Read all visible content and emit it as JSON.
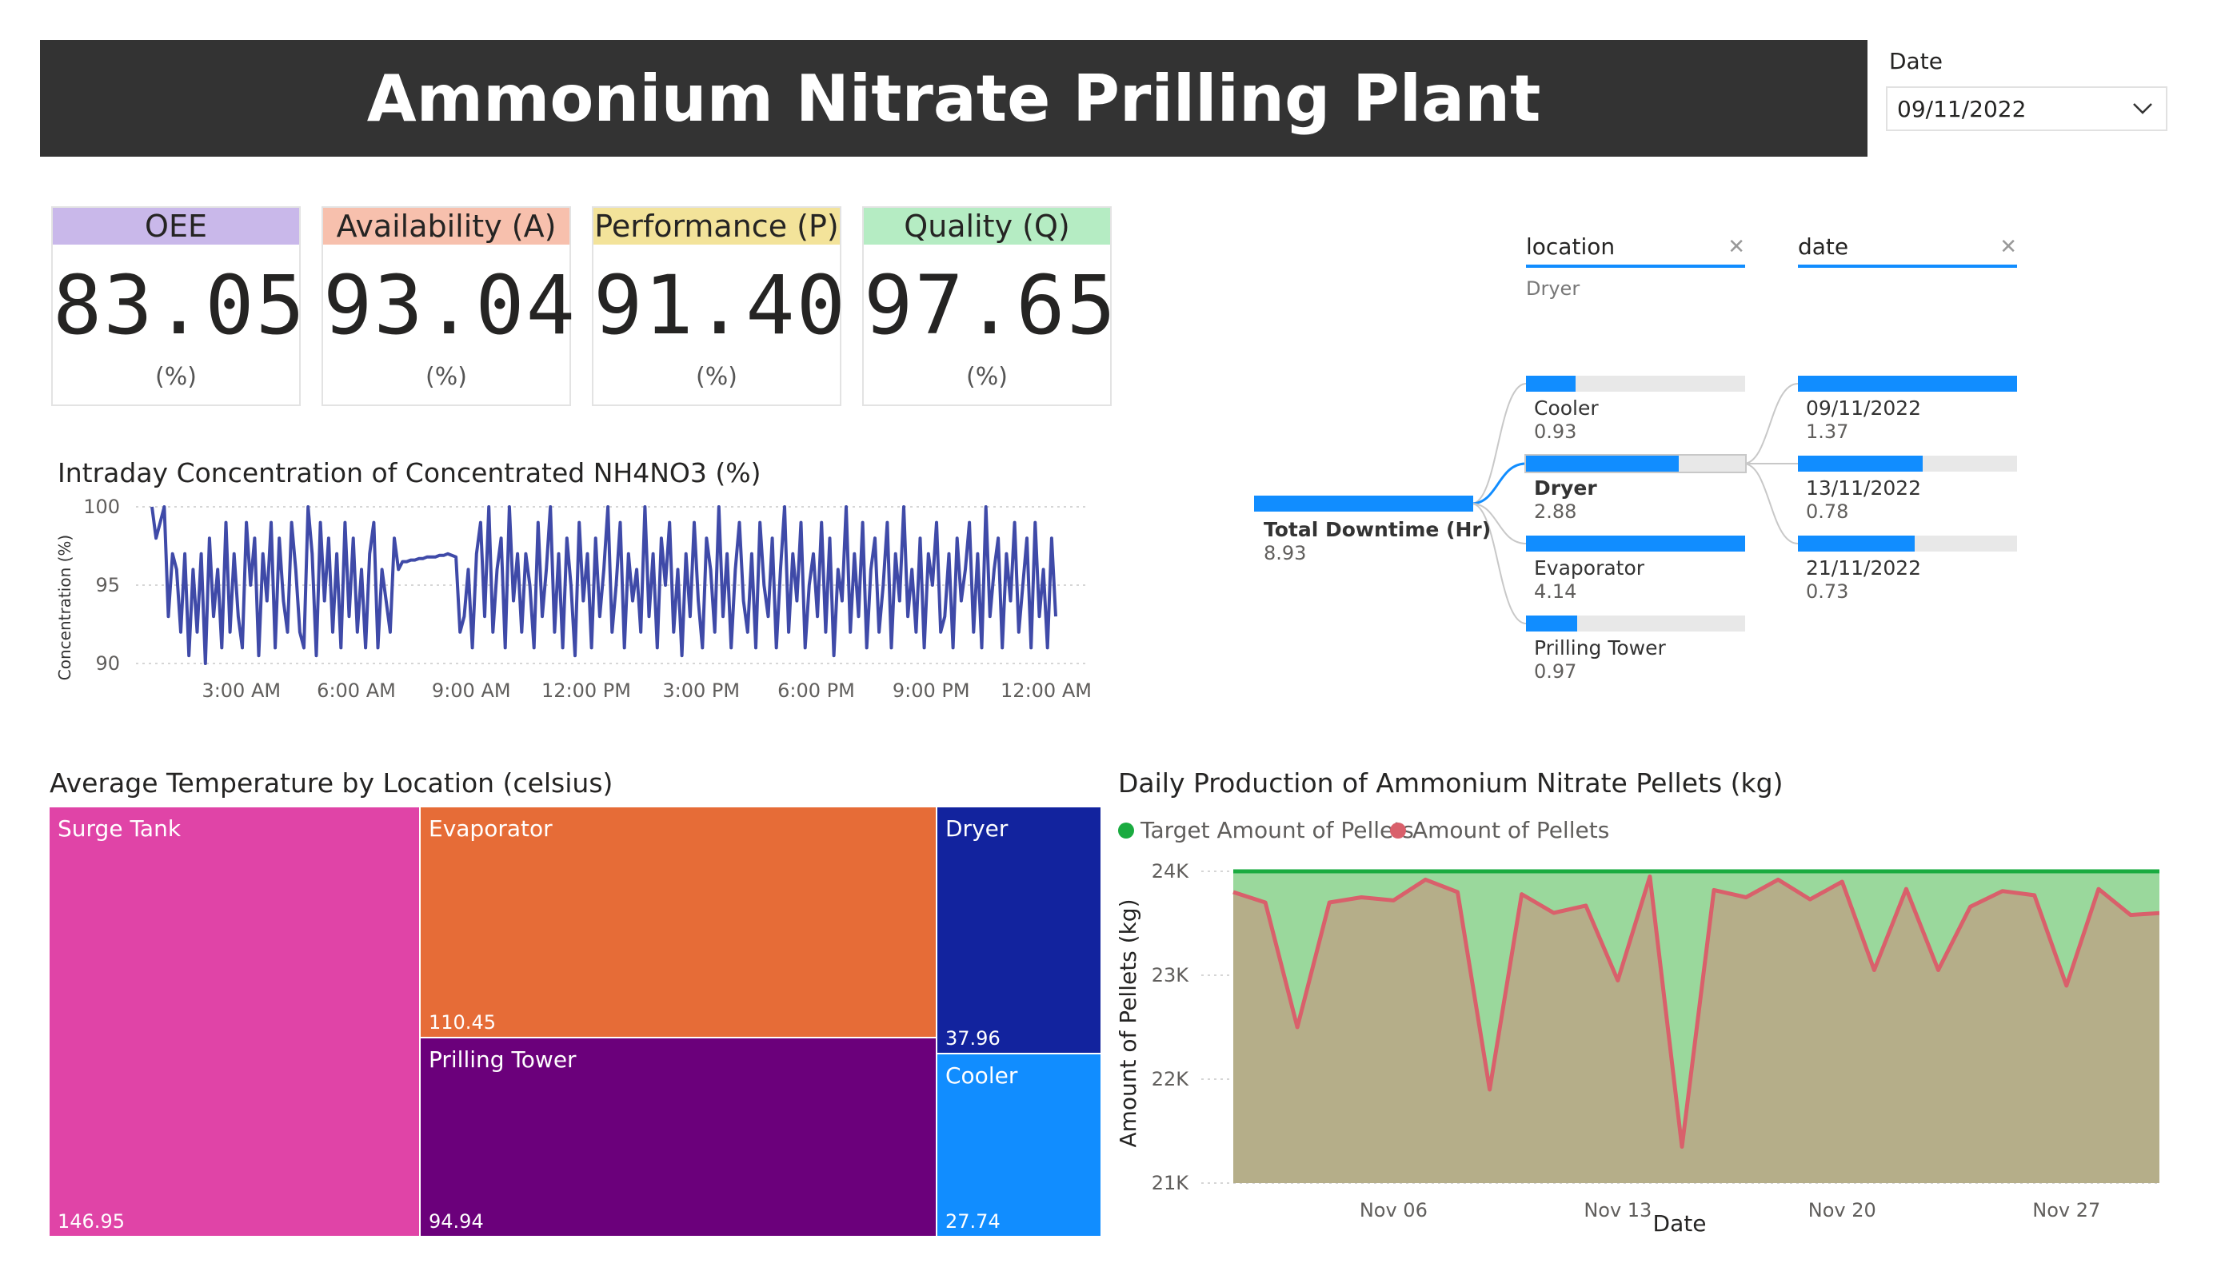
{
  "header": {
    "title": "Ammonium Nitrate Prilling Plant"
  },
  "date_slicer": {
    "label": "Date",
    "value": "09/11/2022",
    "chevron_icon": "chevron-down-icon"
  },
  "kpis": [
    {
      "name": "OEE",
      "value": "83.05",
      "unit": "(%)",
      "color": "#c9b8ea"
    },
    {
      "name": "Availability (A)",
      "value": "93.04",
      "unit": "(%)",
      "color": "#f7c0ad"
    },
    {
      "name": "Performance (P)",
      "value": "91.40",
      "unit": "(%)",
      "color": "#f3e39a"
    },
    {
      "name": "Quality (Q)",
      "value": "97.65",
      "unit": "(%)",
      "color": "#b5ecc3"
    }
  ],
  "decomposition": {
    "filters": [
      {
        "label": "location",
        "selected": "Dryer"
      },
      {
        "label": "date",
        "selected": ""
      }
    ],
    "root": {
      "label": "Total Downtime (Hr)",
      "value": "8.93"
    },
    "locations": [
      {
        "label": "Cooler",
        "value": "0.93",
        "fraction": 0.225
      },
      {
        "label": "Dryer",
        "value": "2.88",
        "fraction": 0.696,
        "selected": true
      },
      {
        "label": "Evaporator",
        "value": "4.14",
        "fraction": 1.0
      },
      {
        "label": "Prilling Tower",
        "value": "0.97",
        "fraction": 0.234
      }
    ],
    "dates": [
      {
        "label": "09/11/2022",
        "value": "1.37",
        "fraction": 1.0
      },
      {
        "label": "13/11/2022",
        "value": "0.78",
        "fraction": 0.569
      },
      {
        "label": "21/11/2022",
        "value": "0.73",
        "fraction": 0.533
      }
    ]
  },
  "intraday_chart": {
    "title": "Intraday Concentration of Concentrated NH4NO3 (%)",
    "ylabel": "Concentration (%)",
    "yticks": [
      "100",
      "95",
      "90"
    ],
    "xticks": [
      "3:00 AM",
      "6:00 AM",
      "9:00 AM",
      "12:00 PM",
      "3:00 PM",
      "6:00 PM",
      "9:00 PM",
      "12:00 AM"
    ],
    "line_color": "#3f4aa8"
  },
  "treemap": {
    "title": "Average Temperature by Location (celsius)",
    "items": [
      {
        "name": "Surge Tank",
        "value": "146.95",
        "color": "#e044a7"
      },
      {
        "name": "Evaporator",
        "value": "110.45",
        "color": "#e66c37"
      },
      {
        "name": "Prilling Tower",
        "value": "94.94",
        "color": "#6b007b"
      },
      {
        "name": "Dryer",
        "value": "37.96",
        "color": "#12239e"
      },
      {
        "name": "Cooler",
        "value": "27.74",
        "color": "#118dff"
      }
    ]
  },
  "production_chart": {
    "title": "Daily Production of Ammonium Nitrate Pellets (kg)",
    "legend": [
      {
        "name": "Target Amount of Pellets",
        "color": "#1aab40"
      },
      {
        "name": "Amount of Pellets",
        "color": "#d9606b"
      }
    ],
    "ylabel": "Amount of Pellets (kg)",
    "xlabel": "Date",
    "yticks": [
      "24K",
      "23K",
      "22K",
      "21K"
    ],
    "xticks": [
      "Nov 06",
      "Nov 13",
      "Nov 20",
      "Nov 27"
    ]
  },
  "chart_data": [
    {
      "type": "line",
      "title": "Intraday Concentration of Concentrated NH4NO3 (%)",
      "ylabel": "Concentration (%)",
      "ylim": [
        90,
        100
      ],
      "x_range": [
        "12:00 AM",
        "12:00 AM"
      ],
      "series": [
        {
          "values": [
            100,
            98,
            99,
            100,
            93,
            97,
            96,
            92,
            97,
            90.5,
            96,
            92,
            97,
            90,
            98,
            93,
            96,
            91,
            99,
            92,
            97,
            93,
            91,
            99,
            95,
            98,
            90.5,
            97,
            94,
            99,
            91,
            98,
            94,
            92,
            99,
            96,
            92,
            91,
            100,
            97,
            90.5,
            99,
            94,
            98,
            92,
            97,
            91,
            99,
            93,
            98,
            92,
            96,
            91,
            97,
            99,
            91,
            96,
            94,
            92,
            98,
            96,
            96.5,
            96.5,
            96.6,
            96.6,
            96.7,
            96.7,
            96.8,
            96.8,
            96.8,
            96.9,
            96.9,
            97,
            96.9,
            96.8,
            92,
            93,
            96,
            91,
            97,
            99,
            93,
            100,
            92,
            96,
            98,
            91,
            100,
            94,
            97,
            92,
            97,
            95,
            91,
            99,
            93,
            96,
            100,
            92,
            97,
            91,
            98,
            95,
            90.5,
            99,
            94,
            97,
            91,
            98,
            93,
            96,
            100,
            92,
            95,
            99,
            91,
            97,
            94,
            96,
            92,
            100,
            93,
            97,
            91,
            98,
            95,
            99,
            92,
            96,
            90.5,
            97,
            93,
            99,
            94,
            91,
            98,
            96,
            92,
            100,
            93,
            97,
            91,
            96,
            99,
            94,
            92,
            97,
            91,
            99,
            95,
            93,
            98,
            91,
            96,
            100,
            92,
            97,
            94,
            99,
            91,
            95,
            97,
            93,
            99,
            92,
            98,
            90.5,
            96,
            94,
            100,
            92,
            97,
            93,
            99,
            91,
            96,
            98,
            92,
            95,
            99,
            91,
            97,
            94,
            100,
            93,
            96,
            92,
            98,
            91,
            97,
            95,
            99,
            92,
            93,
            97,
            91,
            98,
            94,
            96,
            99,
            92,
            97,
            91,
            100,
            93,
            96,
            98,
            91,
            97,
            94,
            99,
            92,
            95,
            98,
            91,
            99,
            93,
            96,
            91,
            98,
            93
          ]
        }
      ]
    },
    {
      "type": "area",
      "title": "Daily Production of Ammonium Nitrate Pellets (kg)",
      "xlabel": "Date",
      "ylabel": "Amount of Pellets (kg)",
      "ylim": [
        21000,
        24000
      ],
      "x": [
        "Nov 01",
        "Nov 02",
        "Nov 03",
        "Nov 04",
        "Nov 05",
        "Nov 06",
        "Nov 07",
        "Nov 08",
        "Nov 09",
        "Nov 10",
        "Nov 11",
        "Nov 12",
        "Nov 13",
        "Nov 14",
        "Nov 15",
        "Nov 16",
        "Nov 17",
        "Nov 18",
        "Nov 19",
        "Nov 20",
        "Nov 21",
        "Nov 22",
        "Nov 23",
        "Nov 24",
        "Nov 25",
        "Nov 26",
        "Nov 27",
        "Nov 28",
        "Nov 29",
        "Nov 30"
      ],
      "series": [
        {
          "name": "Target Amount of Pellets",
          "values": [
            24000,
            24000,
            24000,
            24000,
            24000,
            24000,
            24000,
            24000,
            24000,
            24000,
            24000,
            24000,
            24000,
            24000,
            24000,
            24000,
            24000,
            24000,
            24000,
            24000,
            24000,
            24000,
            24000,
            24000,
            24000,
            24000,
            24000,
            24000,
            24000,
            24000
          ]
        },
        {
          "name": "Amount of Pellets",
          "values": [
            23800,
            23700,
            22500,
            23700,
            23750,
            23720,
            23920,
            23800,
            21900,
            23780,
            23600,
            23670,
            22950,
            23950,
            21350,
            23820,
            23750,
            23920,
            23730,
            23900,
            23050,
            23830,
            23050,
            23660,
            23810,
            23770,
            22900,
            23830,
            23580,
            23600
          ]
        }
      ]
    },
    {
      "type": "table",
      "title": "Average Temperature by Location (celsius)",
      "categories": [
        "Surge Tank",
        "Evaporator",
        "Prilling Tower",
        "Dryer",
        "Cooler"
      ],
      "values": [
        146.95,
        110.45,
        94.94,
        37.96,
        27.74
      ]
    }
  ]
}
